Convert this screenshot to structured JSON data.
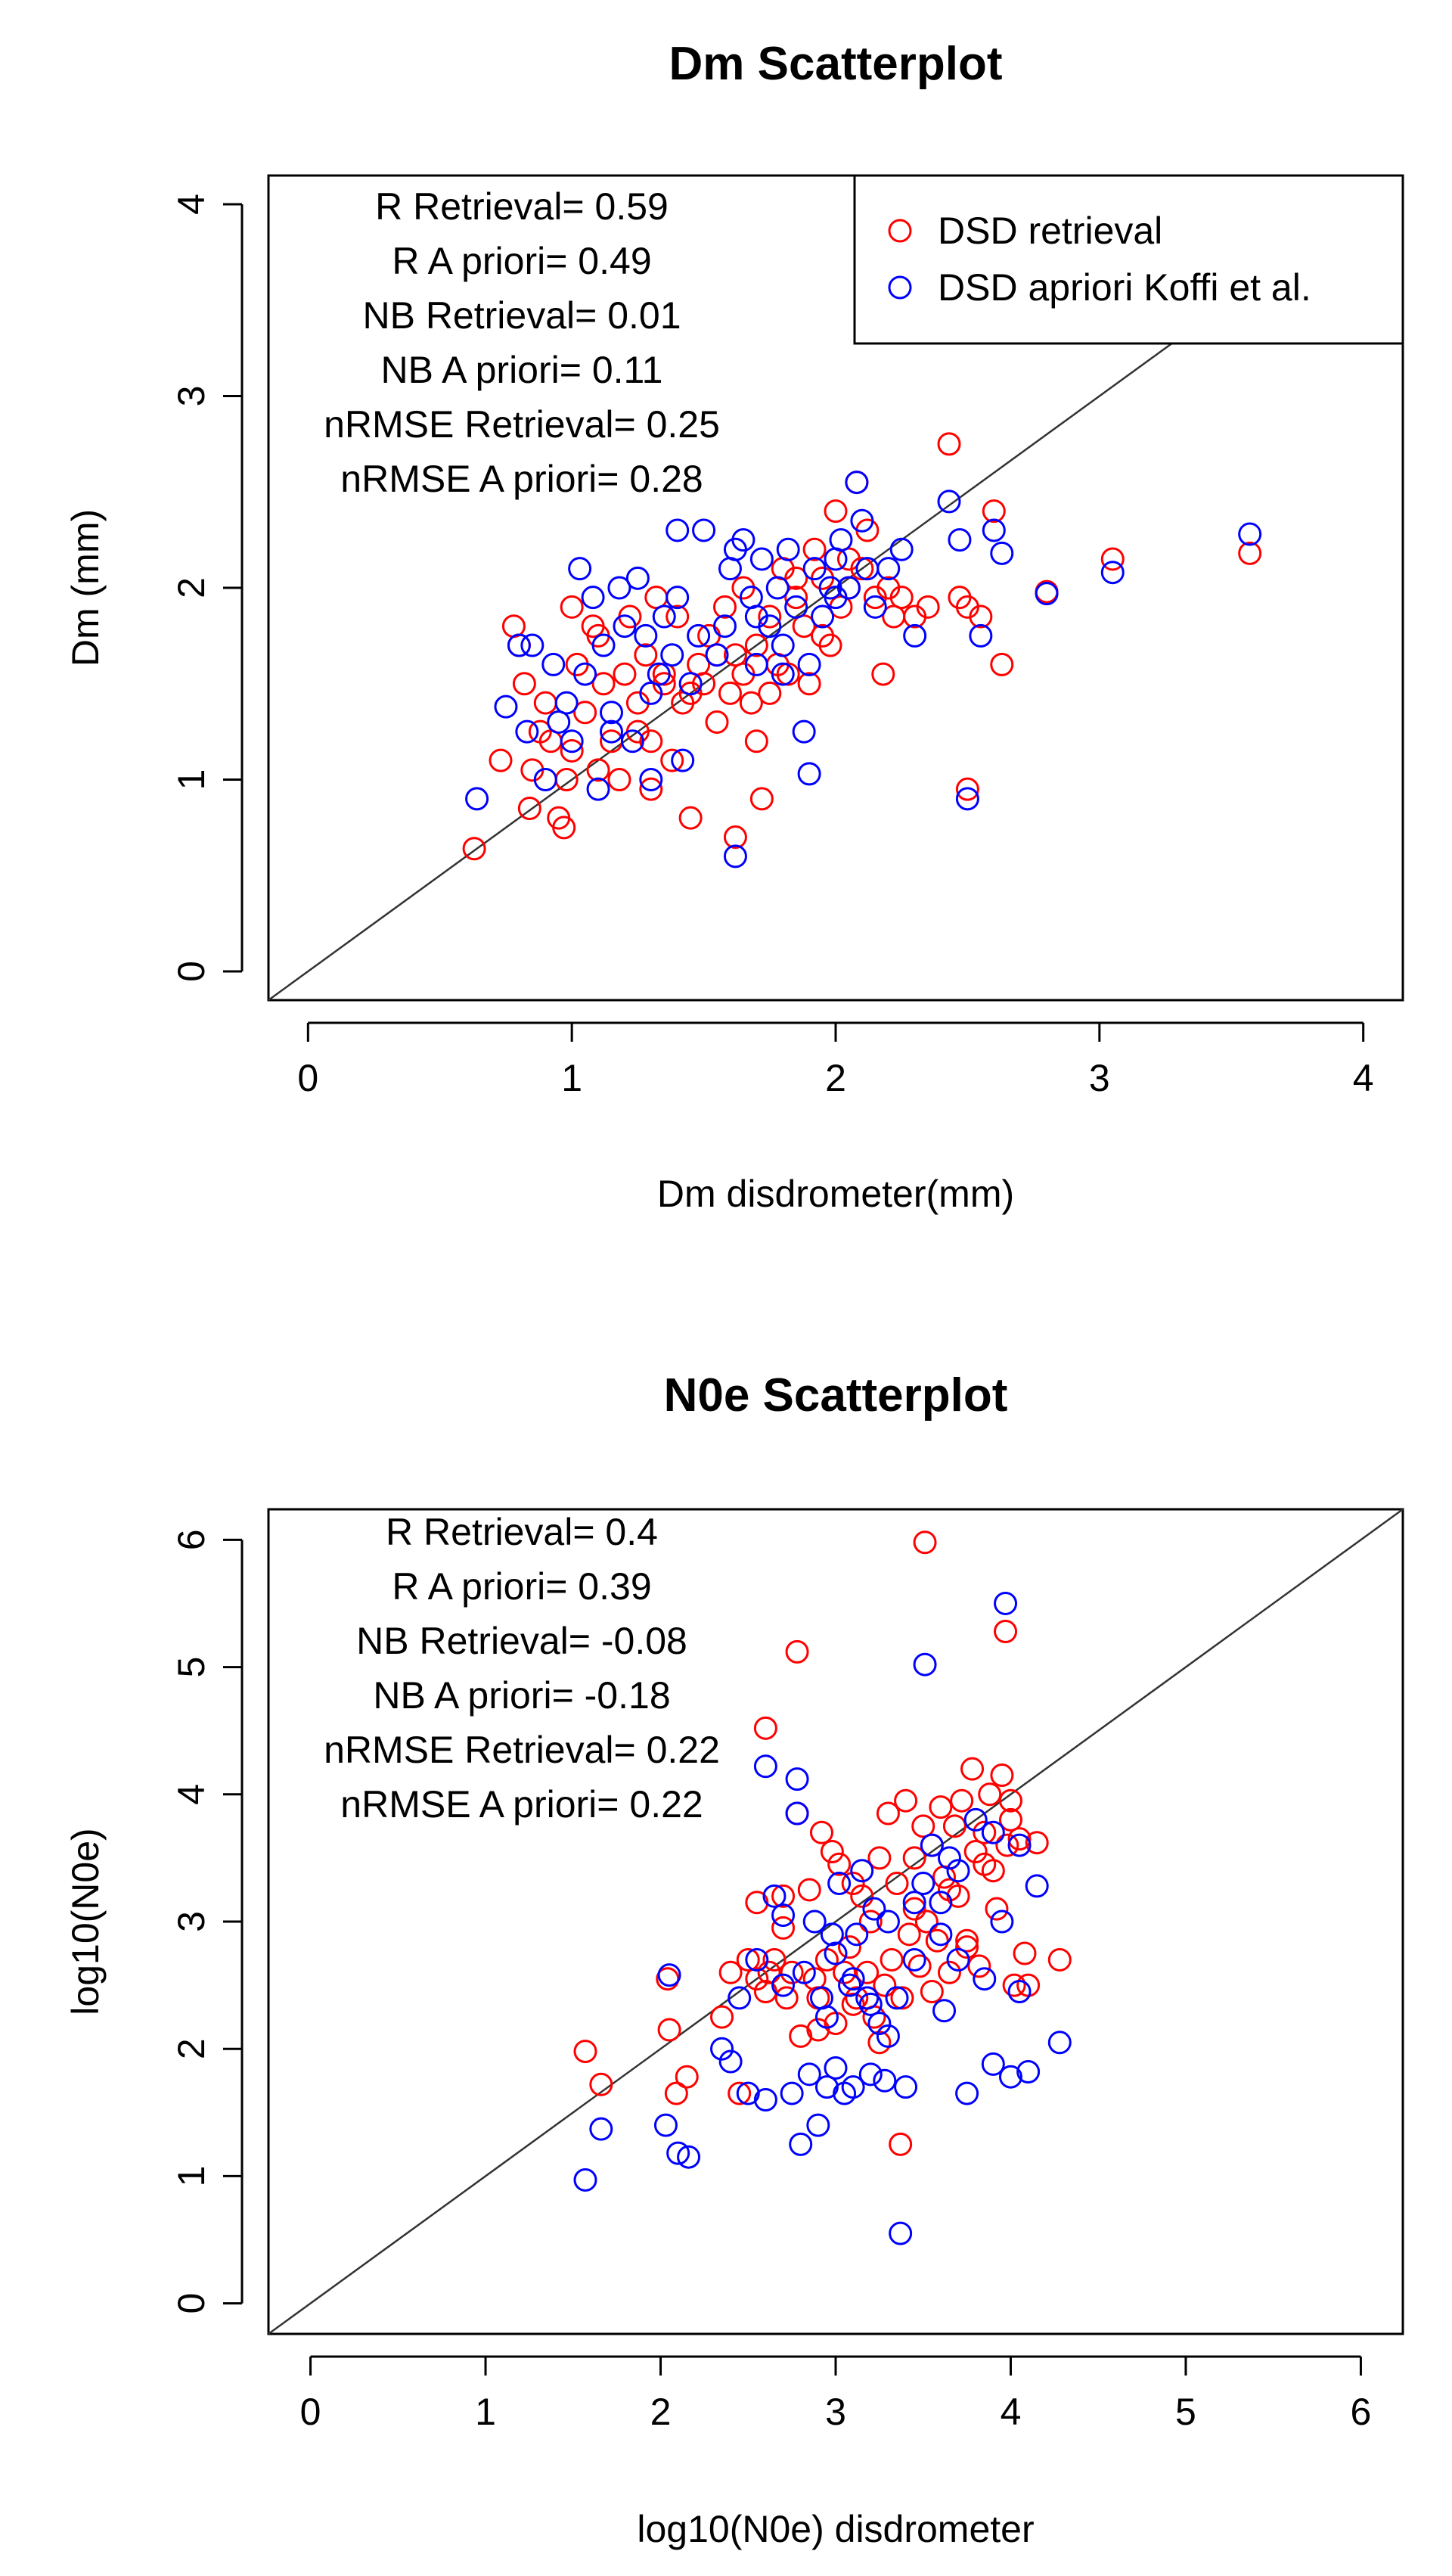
{
  "colors": {
    "retrieval": "#ff0000",
    "apriori": "#0000ff",
    "axis": "#000000",
    "identity_line": "#333333"
  },
  "legend": {
    "retrieval_label": "DSD retrieval",
    "apriori_label": "DSD apriori Koffi et al."
  },
  "chart_data": [
    {
      "type": "scatter",
      "title": "Dm Scatterplot",
      "xlabel": "Dm disdrometer(mm)",
      "ylabel": "Dm (mm)",
      "xlim": [
        -0.15,
        4.15
      ],
      "ylim": [
        -0.15,
        4.15
      ],
      "xticks": [
        "0",
        "1",
        "2",
        "3",
        "4"
      ],
      "yticks": [
        "0",
        "1",
        "2",
        "3",
        "4"
      ],
      "stats": [
        "R Retrieval= 0.59",
        "R A priori= 0.49",
        "NB Retrieval= 0.01",
        "NB A priori= 0.11",
        "nRMSE Retrieval= 0.25",
        "nRMSE A priori= 0.28"
      ],
      "identity_line": true,
      "series": [
        {
          "name": "DSD retrieval",
          "color": "#ff0000",
          "x": [
            0.63,
            0.73,
            0.78,
            0.8,
            0.82,
            0.84,
            0.85,
            0.88,
            0.9,
            0.92,
            0.95,
            0.97,
            0.98,
            1.0,
            1.02,
            1.05,
            1.08,
            1.1,
            1.12,
            1.15,
            1.18,
            1.2,
            1.22,
            1.25,
            1.28,
            1.3,
            1.32,
            1.35,
            1.38,
            1.4,
            1.42,
            1.45,
            1.48,
            1.5,
            1.52,
            1.55,
            1.58,
            1.6,
            1.62,
            1.65,
            1.68,
            1.7,
            1.72,
            1.75,
            1.78,
            1.8,
            1.82,
            1.85,
            1.88,
            1.9,
            1.92,
            1.95,
            1.98,
            2.0,
            2.02,
            2.05,
            2.08,
            2.1,
            2.12,
            2.15,
            2.18,
            2.2,
            2.22,
            2.25,
            2.3,
            2.35,
            2.43,
            2.47,
            2.5,
            2.55,
            2.6,
            2.63,
            2.8,
            3.05,
            3.57,
            1.62,
            1.7,
            1.45,
            1.3,
            2.5,
            1.0,
            1.1,
            1.35,
            1.55,
            1.75,
            1.95,
            2.05,
            1.25,
            1.65,
            1.85
          ],
          "y": [
            0.64,
            1.1,
            1.8,
            1.7,
            1.5,
            0.85,
            1.05,
            1.25,
            1.4,
            1.2,
            0.8,
            0.75,
            1.0,
            1.9,
            1.6,
            1.35,
            1.8,
            1.75,
            1.5,
            1.2,
            1.0,
            1.55,
            1.85,
            1.4,
            1.65,
            1.2,
            1.95,
            1.5,
            1.1,
            1.85,
            1.4,
            0.8,
            1.6,
            1.5,
            1.75,
            1.3,
            1.9,
            1.45,
            1.65,
            2.0,
            1.4,
            1.7,
            0.9,
            1.85,
            1.6,
            2.1,
            1.55,
            1.95,
            1.8,
            1.5,
            2.2,
            2.05,
            1.7,
            2.4,
            1.9,
            2.0,
            2.55,
            2.1,
            2.3,
            1.95,
            1.55,
            2.0,
            1.85,
            1.95,
            1.85,
            1.9,
            2.75,
            1.95,
            0.95,
            1.85,
            2.4,
            1.6,
            1.98,
            2.15,
            2.18,
            0.7,
            1.2,
            1.45,
            0.95,
            1.9,
            1.15,
            1.05,
            1.55,
            1.65,
            1.45,
            1.75,
            2.15,
            1.25,
            1.55,
            2.05
          ]
        },
        {
          "name": "DSD apriori Koffi et al.",
          "color": "#0000ff",
          "x": [
            0.64,
            0.75,
            0.8,
            0.83,
            0.85,
            0.9,
            0.93,
            0.95,
            0.98,
            1.0,
            1.03,
            1.05,
            1.08,
            1.1,
            1.12,
            1.15,
            1.18,
            1.2,
            1.23,
            1.25,
            1.28,
            1.3,
            1.33,
            1.35,
            1.38,
            1.4,
            1.42,
            1.45,
            1.48,
            1.5,
            1.55,
            1.58,
            1.6,
            1.62,
            1.65,
            1.68,
            1.7,
            1.72,
            1.75,
            1.78,
            1.8,
            1.82,
            1.85,
            1.88,
            1.9,
            1.92,
            1.95,
            1.98,
            2.0,
            2.02,
            2.05,
            2.08,
            2.1,
            2.12,
            2.15,
            2.2,
            2.25,
            2.3,
            2.43,
            2.47,
            2.5,
            2.55,
            2.6,
            2.63,
            2.8,
            3.05,
            3.57,
            1.62,
            1.9,
            1.3,
            1.4,
            1.8,
            2.0,
            1.15,
            1.7
          ],
          "y": [
            0.9,
            1.38,
            1.7,
            1.25,
            1.7,
            1.0,
            1.6,
            1.3,
            1.4,
            1.2,
            2.1,
            1.55,
            1.95,
            0.95,
            1.7,
            1.35,
            2.0,
            1.8,
            1.2,
            2.05,
            1.75,
            1.0,
            1.55,
            1.85,
            1.65,
            1.95,
            1.1,
            1.5,
            1.75,
            2.3,
            1.65,
            1.8,
            2.1,
            0.6,
            2.25,
            1.95,
            1.6,
            2.15,
            1.8,
            2.0,
            1.7,
            2.2,
            1.9,
            1.25,
            1.03,
            2.1,
            1.85,
            2.0,
            2.15,
            2.25,
            2.0,
            2.55,
            2.35,
            2.1,
            1.9,
            2.1,
            2.2,
            1.75,
            2.45,
            2.25,
            0.9,
            1.75,
            2.3,
            2.18,
            1.97,
            2.08,
            2.28,
            2.2,
            1.6,
            1.45,
            2.3,
            1.55,
            1.95,
            1.25,
            1.85
          ]
        }
      ]
    },
    {
      "type": "scatter",
      "title": "N0e Scatterplot",
      "xlabel": "log10(N0e) disdrometer",
      "ylabel": "log10(N0e)",
      "xlim": [
        -0.24,
        6.24
      ],
      "ylim": [
        -0.24,
        6.24
      ],
      "xticks": [
        "0",
        "1",
        "2",
        "3",
        "4",
        "5",
        "6"
      ],
      "yticks": [
        "0",
        "1",
        "2",
        "3",
        "4",
        "5",
        "6"
      ],
      "stats": [
        "R Retrieval= 0.4",
        "R A priori= 0.39",
        "NB Retrieval= -0.08",
        "NB A priori= -0.18",
        "nRMSE Retrieval= 0.22",
        "nRMSE A priori= 0.22"
      ],
      "identity_line": true,
      "series": [
        {
          "name": "DSD retrieval",
          "color": "#ff0000",
          "x": [
            1.57,
            1.66,
            2.04,
            2.05,
            2.09,
            2.15,
            2.35,
            2.4,
            2.45,
            2.5,
            2.55,
            2.6,
            2.62,
            2.65,
            2.7,
            2.72,
            2.75,
            2.78,
            2.8,
            2.85,
            2.88,
            2.9,
            2.92,
            2.95,
            2.98,
            3.0,
            3.02,
            3.05,
            3.08,
            3.1,
            3.12,
            3.15,
            3.18,
            3.2,
            3.22,
            3.25,
            3.28,
            3.3,
            3.32,
            3.35,
            3.38,
            3.4,
            3.42,
            3.45,
            3.48,
            3.5,
            3.52,
            3.55,
            3.58,
            3.6,
            3.62,
            3.65,
            3.68,
            3.7,
            3.72,
            3.75,
            3.78,
            3.8,
            3.82,
            3.85,
            3.88,
            3.9,
            3.92,
            3.95,
            3.98,
            4.0,
            4.02,
            4.05,
            4.08,
            4.1,
            4.15,
            4.28,
            3.51,
            3.97,
            2.78,
            2.6,
            3.37,
            2.9,
            3.1,
            3.45,
            3.65,
            3.85,
            2.55,
            2.7,
            3.25,
            3.55,
            3.75,
            4.0
          ],
          "y": [
            1.98,
            1.72,
            2.55,
            2.15,
            1.65,
            1.78,
            2.25,
            2.6,
            1.65,
            2.7,
            3.15,
            2.45,
            2.6,
            2.7,
            3.2,
            2.4,
            2.6,
            3.85,
            2.1,
            3.25,
            2.55,
            2.4,
            3.7,
            2.7,
            3.55,
            2.2,
            3.45,
            2.6,
            2.8,
            3.3,
            2.4,
            3.2,
            2.6,
            3.0,
            2.25,
            3.5,
            2.5,
            3.85,
            2.7,
            3.3,
            2.4,
            3.95,
            2.9,
            3.5,
            2.65,
            3.75,
            3.0,
            3.6,
            2.85,
            3.9,
            3.35,
            2.6,
            3.75,
            3.2,
            3.95,
            2.8,
            4.2,
            3.55,
            2.65,
            3.7,
            4.0,
            3.4,
            3.1,
            4.15,
            3.6,
            3.8,
            2.5,
            3.65,
            2.75,
            2.5,
            3.62,
            2.7,
            5.98,
            5.28,
            5.12,
            4.52,
            1.25,
            2.15,
            2.35,
            3.1,
            3.25,
            3.45,
            2.55,
            2.95,
            2.05,
            2.45,
            2.85,
            3.95
          ]
        },
        {
          "name": "DSD apriori Koffi et al.",
          "color": "#0000ff",
          "x": [
            1.57,
            1.66,
            2.03,
            2.05,
            2.1,
            2.16,
            2.35,
            2.4,
            2.45,
            2.5,
            2.55,
            2.6,
            2.65,
            2.7,
            2.75,
            2.78,
            2.8,
            2.82,
            2.85,
            2.88,
            2.9,
            2.92,
            2.95,
            2.98,
            3.0,
            3.02,
            3.05,
            3.08,
            3.1,
            3.12,
            3.15,
            3.18,
            3.2,
            3.22,
            3.25,
            3.28,
            3.3,
            3.35,
            3.4,
            3.45,
            3.5,
            3.55,
            3.6,
            3.62,
            3.65,
            3.7,
            3.75,
            3.8,
            3.85,
            3.9,
            3.95,
            4.0,
            4.05,
            4.1,
            4.15,
            4.28,
            3.97,
            3.51,
            2.6,
            2.78,
            3.37,
            2.95,
            3.1,
            3.3,
            3.45,
            3.7,
            3.9,
            4.05,
            2.7,
            3.0,
            3.2,
            3.6
          ],
          "y": [
            0.97,
            1.37,
            1.4,
            2.58,
            1.18,
            1.15,
            2.0,
            1.9,
            2.4,
            1.65,
            2.7,
            1.6,
            3.2,
            2.5,
            1.65,
            4.12,
            1.25,
            2.6,
            1.8,
            3.0,
            1.4,
            2.4,
            1.7,
            2.9,
            1.85,
            3.3,
            1.65,
            2.5,
            1.7,
            2.9,
            3.4,
            2.4,
            1.8,
            3.1,
            2.2,
            1.75,
            3.0,
            2.4,
            1.7,
            2.7,
            3.3,
            3.6,
            2.9,
            2.3,
            3.5,
            2.7,
            1.65,
            3.8,
            2.55,
            1.88,
            3.0,
            1.78,
            3.6,
            1.82,
            3.28,
            2.05,
            5.5,
            5.02,
            4.22,
            3.85,
            0.55,
            2.25,
            2.55,
            2.1,
            3.15,
            3.4,
            3.7,
            2.45,
            3.05,
            2.75,
            2.35,
            3.15
          ]
        }
      ]
    }
  ]
}
